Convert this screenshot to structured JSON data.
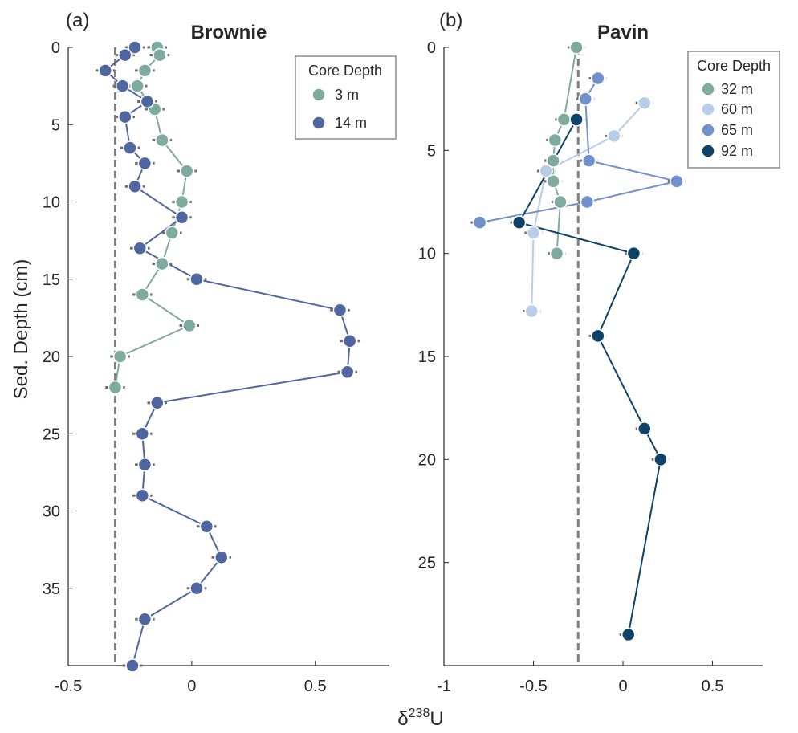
{
  "figure": {
    "ylabel": "Sed. Depth (cm)",
    "xlabel_prefix": "δ",
    "xlabel_sup": "238",
    "xlabel_suffix": "U"
  },
  "chart_data": [
    {
      "type": "scatter",
      "panel_label": "(a)",
      "title": "Brownie",
      "xlim": [
        -0.5,
        0.8
      ],
      "ylim": [
        0,
        40
      ],
      "y_reversed": true,
      "xticks": [
        -0.5,
        0,
        0.5
      ],
      "xtick_labels": [
        "-0.5",
        "0",
        "0.5"
      ],
      "yticks": [
        0,
        5,
        10,
        15,
        20,
        25,
        30,
        35
      ],
      "ytick_labels": [
        "0",
        "5",
        "10",
        "15",
        "20",
        "25",
        "30",
        "35"
      ],
      "reference_line_x": -0.31,
      "error_bar_halfwidth": 0.04,
      "legend": {
        "title": "Core Depth",
        "position": "top-right"
      },
      "series": [
        {
          "name": "3 m",
          "color": "#7faa9e",
          "points": [
            {
              "x": -0.14,
              "y": 0
            },
            {
              "x": -0.13,
              "y": 0.5
            },
            {
              "x": -0.19,
              "y": 1.5
            },
            {
              "x": -0.22,
              "y": 2.5
            },
            {
              "x": -0.18,
              "y": 3.5
            },
            {
              "x": -0.15,
              "y": 4
            },
            {
              "x": -0.12,
              "y": 6
            },
            {
              "x": -0.02,
              "y": 8
            },
            {
              "x": -0.04,
              "y": 10
            },
            {
              "x": -0.08,
              "y": 12
            },
            {
              "x": -0.12,
              "y": 14
            },
            {
              "x": -0.2,
              "y": 16
            },
            {
              "x": -0.01,
              "y": 18
            },
            {
              "x": -0.29,
              "y": 20
            },
            {
              "x": -0.31,
              "y": 22
            }
          ]
        },
        {
          "name": "14 m",
          "color": "#4f66a0",
          "points": [
            {
              "x": -0.23,
              "y": 0
            },
            {
              "x": -0.27,
              "y": 0.5
            },
            {
              "x": -0.35,
              "y": 1.5
            },
            {
              "x": -0.28,
              "y": 2.5
            },
            {
              "x": -0.18,
              "y": 3.5
            },
            {
              "x": -0.27,
              "y": 4.5
            },
            {
              "x": -0.25,
              "y": 6.5
            },
            {
              "x": -0.19,
              "y": 7.5
            },
            {
              "x": -0.23,
              "y": 9
            },
            {
              "x": -0.04,
              "y": 11
            },
            {
              "x": -0.21,
              "y": 13
            },
            {
              "x": 0.02,
              "y": 15
            },
            {
              "x": 0.6,
              "y": 17
            },
            {
              "x": 0.64,
              "y": 19
            },
            {
              "x": 0.63,
              "y": 21
            },
            {
              "x": -0.14,
              "y": 23
            },
            {
              "x": -0.2,
              "y": 25
            },
            {
              "x": -0.19,
              "y": 27
            },
            {
              "x": -0.2,
              "y": 29
            },
            {
              "x": 0.06,
              "y": 31
            },
            {
              "x": 0.12,
              "y": 33
            },
            {
              "x": 0.02,
              "y": 35
            },
            {
              "x": -0.19,
              "y": 37
            },
            {
              "x": -0.24,
              "y": 40
            }
          ]
        }
      ]
    },
    {
      "type": "scatter",
      "panel_label": "(b)",
      "title": "Pavin",
      "xlim": [
        -1,
        0.78
      ],
      "ylim": [
        0,
        30
      ],
      "y_reversed": true,
      "xticks": [
        -1,
        -0.5,
        0,
        0.5
      ],
      "xtick_labels": [
        "-1",
        "-0.5",
        "0",
        "0.5"
      ],
      "yticks": [
        0,
        5,
        10,
        15,
        20,
        25
      ],
      "ytick_labels": [
        "0",
        "5",
        "10",
        "15",
        "20",
        "25"
      ],
      "reference_line_x": -0.25,
      "error_bar_halfwidth": 0.05,
      "legend": {
        "title": "Core Depth",
        "position": "top-right"
      },
      "series": [
        {
          "name": "32 m",
          "color": "#7faa9e",
          "points": [
            {
              "x": -0.26,
              "y": 0
            },
            {
              "x": -0.33,
              "y": 3.5
            },
            {
              "x": -0.38,
              "y": 4.5
            },
            {
              "x": -0.39,
              "y": 5.5
            },
            {
              "x": -0.39,
              "y": 6.5
            },
            {
              "x": -0.35,
              "y": 7.5
            },
            {
              "x": -0.37,
              "y": 10
            }
          ]
        },
        {
          "name": "60 m",
          "color": "#b8cde6",
          "points": [
            {
              "x": 0.12,
              "y": 2.7
            },
            {
              "x": -0.05,
              "y": 4.3
            },
            {
              "x": -0.43,
              "y": 6
            },
            {
              "x": -0.5,
              "y": 9
            },
            {
              "x": -0.51,
              "y": 12.8
            }
          ]
        },
        {
          "name": "65 m",
          "color": "#7190cc",
          "points": [
            {
              "x": -0.14,
              "y": 1.5
            },
            {
              "x": -0.21,
              "y": 2.5
            },
            {
              "x": -0.19,
              "y": 5.5
            },
            {
              "x": 0.3,
              "y": 6.5
            },
            {
              "x": -0.2,
              "y": 7.5
            },
            {
              "x": -0.8,
              "y": 8.5
            }
          ]
        },
        {
          "name": "92 m",
          "color": "#0f4268",
          "points": [
            {
              "x": -0.26,
              "y": 3.5
            },
            {
              "x": -0.58,
              "y": 8.5
            },
            {
              "x": 0.06,
              "y": 10
            },
            {
              "x": -0.14,
              "y": 14
            },
            {
              "x": 0.12,
              "y": 18.5
            },
            {
              "x": 0.21,
              "y": 20
            },
            {
              "x": 0.03,
              "y": 28.5
            }
          ]
        }
      ]
    }
  ]
}
